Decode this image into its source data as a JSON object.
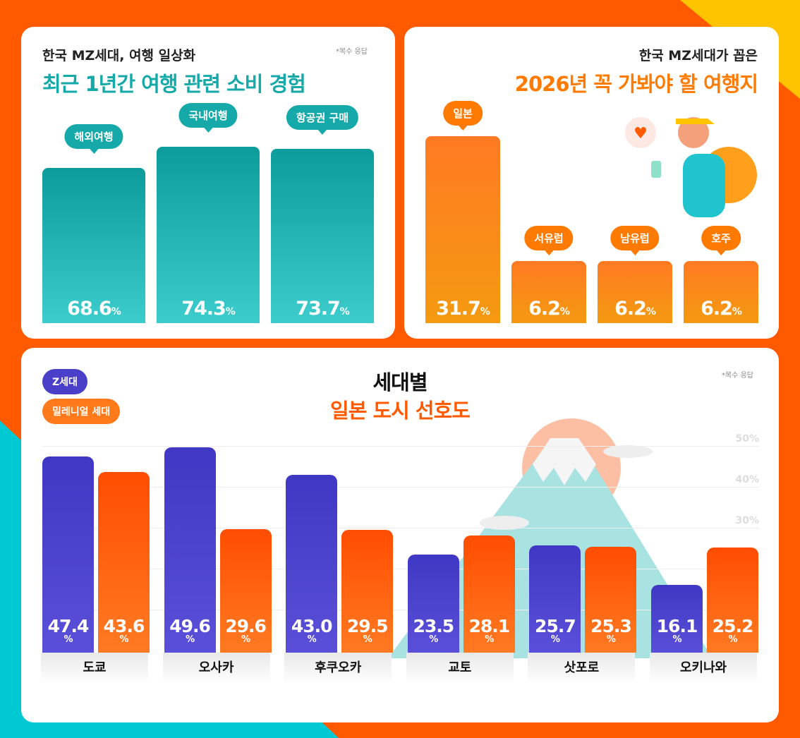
{
  "colors": {
    "teal": "#15a9a9",
    "orange": "#ff7a1a",
    "z": "#4a3fc8",
    "m": "#ff5a00"
  },
  "chart_data": [
    {
      "type": "bar",
      "subtitle": "한국 MZ세대, 여행 일상화",
      "title": "최근 1년간 여행 관련 소비 경험",
      "note": "*복수 응답",
      "categories": [
        "해외여행",
        "국내여행",
        "항공권 구매"
      ],
      "values": [
        68.6,
        74.3,
        73.7
      ],
      "unit": "%"
    },
    {
      "type": "bar",
      "subtitle": "한국 MZ세대가 꼽은",
      "title": "2026년 꼭 가봐야 할 여행지",
      "categories": [
        "일본",
        "서유럽",
        "남유럽",
        "호주"
      ],
      "values": [
        31.7,
        6.2,
        6.2,
        6.2
      ],
      "unit": "%"
    },
    {
      "type": "bar",
      "title_line1": "세대별",
      "title_line2": "일본 도시 선호도",
      "note": "*복수 응답",
      "categories": [
        "도쿄",
        "오사카",
        "후쿠오카",
        "교토",
        "삿포로",
        "오키나와"
      ],
      "series": [
        {
          "name": "Z세대",
          "values": [
            47.4,
            49.6,
            43.0,
            23.5,
            25.7,
            16.1
          ]
        },
        {
          "name": "밀레니얼 세대",
          "values": [
            43.6,
            29.6,
            29.5,
            28.1,
            25.3,
            25.2
          ]
        }
      ],
      "yticks": [
        "30%",
        "40%",
        "50%"
      ],
      "ylim": [
        0,
        50
      ],
      "grid": true,
      "unit": "%",
      "legend": "top-left"
    }
  ]
}
